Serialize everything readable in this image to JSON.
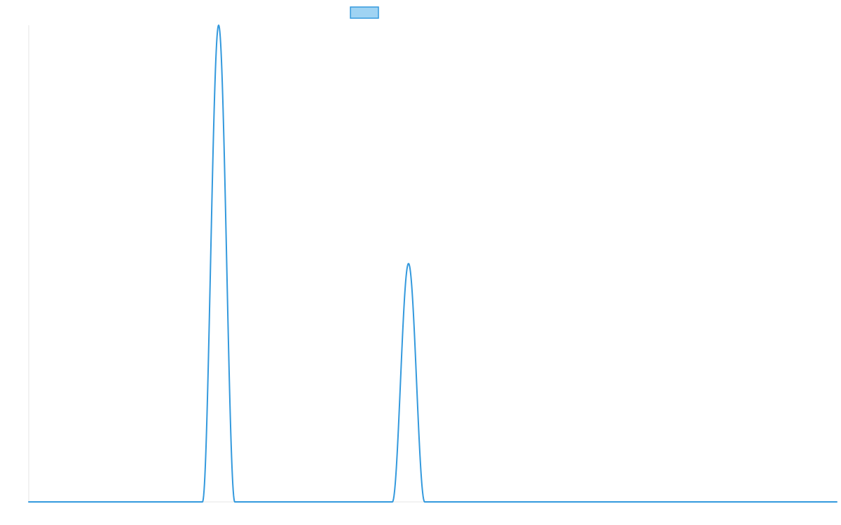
{
  "colors": {
    "series_stroke": "#3399dd",
    "series_fill": "#9fd3f3",
    "axis": "#e6e6e6"
  },
  "chart_data": {
    "type": "line",
    "title": "",
    "xlabel": "",
    "ylabel": "",
    "grid": false,
    "legend_position": "top-center",
    "xlim": [
      0,
      1000
    ],
    "ylim": [
      0,
      100
    ],
    "series": [
      {
        "name": "",
        "peaks": [
          {
            "center": 235,
            "height": 100,
            "halfwidth": 20
          },
          {
            "center": 470,
            "height": 50,
            "halfwidth": 20
          }
        ],
        "baseline": 0
      }
    ]
  }
}
